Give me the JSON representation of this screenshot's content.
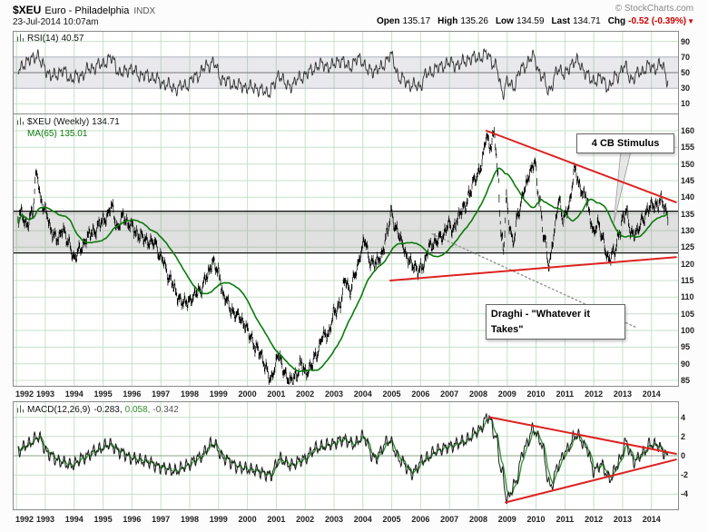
{
  "header": {
    "symbol": "$XEU",
    "title": "Euro - Philadelphia",
    "exchange": "INDX",
    "copyright": "© StockCharts.com",
    "datetime": "23-Jul-2014 10:07am",
    "quote": {
      "open_label": "Open",
      "open": "135.17",
      "high_label": "High",
      "high": "135.26",
      "low_label": "Low",
      "low": "134.59",
      "last_label": "Last",
      "last": "134.71",
      "chg_label": "Chg",
      "chg": "-0.52 (-0.39%)",
      "chg_dir": "▼"
    }
  },
  "colors": {
    "grid": "#c8dfc8",
    "panel_border": "#8a8a8a",
    "price": "#000000",
    "ma": "#0b7a0b",
    "rsi_line": "#333333",
    "rsi_band": "rgba(135,135,155,0.18)",
    "macd_line": "#1c1c1c",
    "signal_line": "#2f8f2f",
    "trendline": "#dd2222",
    "band_fill": "rgba(130,130,130,0.25)",
    "chg_negative": "#cc0000",
    "dotted_line": "#999999"
  },
  "icons": {
    "indicator_icon": "mini-bars",
    "chg_down_icon": "down-triangle"
  },
  "x_axis": {
    "ticks": [
      "1992",
      "1993",
      "1994",
      "1995",
      "1996",
      "1997",
      "1998",
      "1999",
      "2000",
      "2001",
      "2002",
      "2003",
      "2004",
      "2005",
      "2006",
      "2007",
      "2008",
      "2009",
      "2010",
      "2011",
      "2012",
      "2013",
      "2014"
    ]
  },
  "chart_data": [
    {
      "type": "line",
      "name": "rsi",
      "label": "RSI(14)",
      "value": "40.57",
      "ylim": [
        0,
        100
      ],
      "yticks": [
        "90",
        "70",
        "50",
        "30",
        "10"
      ],
      "band": [
        30,
        70
      ],
      "midline": 50,
      "xlim": [
        1992,
        2014.6
      ],
      "points": [
        [
          1992.0,
          52
        ],
        [
          1992.3,
          62
        ],
        [
          1992.7,
          72
        ],
        [
          1992.9,
          60
        ],
        [
          1993.2,
          45
        ],
        [
          1993.6,
          52
        ],
        [
          1993.9,
          42
        ],
        [
          1994.2,
          46
        ],
        [
          1994.6,
          56
        ],
        [
          1994.9,
          60
        ],
        [
          1995.3,
          68
        ],
        [
          1995.6,
          48
        ],
        [
          1995.9,
          55
        ],
        [
          1996.3,
          47
        ],
        [
          1996.7,
          44
        ],
        [
          1997.1,
          36
        ],
        [
          1997.5,
          30
        ],
        [
          1997.9,
          34
        ],
        [
          1998.2,
          45
        ],
        [
          1998.6,
          58
        ],
        [
          1998.8,
          64
        ],
        [
          1999.1,
          42
        ],
        [
          1999.5,
          35
        ],
        [
          1999.9,
          32
        ],
        [
          2000.3,
          30
        ],
        [
          2000.7,
          24
        ],
        [
          2000.95,
          35
        ],
        [
          2001.1,
          48
        ],
        [
          2001.4,
          32
        ],
        [
          2001.8,
          42
        ],
        [
          2002.1,
          50
        ],
        [
          2002.5,
          60
        ],
        [
          2002.9,
          58
        ],
        [
          2003.2,
          66
        ],
        [
          2003.5,
          58
        ],
        [
          2003.9,
          68
        ],
        [
          2004.2,
          52
        ],
        [
          2004.6,
          55
        ],
        [
          2004.95,
          72
        ],
        [
          2005.3,
          42
        ],
        [
          2005.7,
          34
        ],
        [
          2005.95,
          32
        ],
        [
          2006.2,
          48
        ],
        [
          2006.6,
          56
        ],
        [
          2006.95,
          62
        ],
        [
          2007.3,
          60
        ],
        [
          2007.7,
          68
        ],
        [
          2008.1,
          70
        ],
        [
          2008.3,
          74
        ],
        [
          2008.6,
          58
        ],
        [
          2008.85,
          25
        ],
        [
          2009.0,
          38
        ],
        [
          2009.2,
          32
        ],
        [
          2009.5,
          55
        ],
        [
          2009.9,
          70
        ],
        [
          2010.2,
          45
        ],
        [
          2010.45,
          28
        ],
        [
          2010.8,
          55
        ],
        [
          2011.0,
          48
        ],
        [
          2011.35,
          66
        ],
        [
          2011.7,
          52
        ],
        [
          2011.95,
          38
        ],
        [
          2012.2,
          44
        ],
        [
          2012.5,
          32
        ],
        [
          2012.8,
          45
        ],
        [
          2013.05,
          58
        ],
        [
          2013.3,
          42
        ],
        [
          2013.6,
          50
        ],
        [
          2013.9,
          58
        ],
        [
          2014.1,
          56
        ],
        [
          2014.35,
          60
        ],
        [
          2014.58,
          40.6
        ]
      ]
    },
    {
      "type": "ohlc",
      "name": "price",
      "label": "$XEU (Weekly)",
      "value": "134.71",
      "ma_label": "MA(65)",
      "ma_value": "135.01",
      "ylim": [
        85,
        160
      ],
      "yticks": [
        "160",
        "155",
        "150",
        "145",
        "140",
        "135",
        "130",
        "125",
        "120",
        "115",
        "110",
        "105",
        "100",
        "95",
        "90",
        "85"
      ],
      "xlim": [
        1992,
        2014.6
      ],
      "support_band": [
        123.3,
        135.8
      ],
      "trendlines": [
        {
          "from": [
            2008.28,
            160
          ],
          "to": [
            2014.85,
            138.5
          ]
        },
        {
          "from": [
            2004.95,
            115
          ],
          "to": [
            2014.85,
            122
          ]
        }
      ],
      "dotted_line": {
        "from": [
          2006.4,
          129
        ],
        "to": [
          2013.45,
          101
        ]
      },
      "callout": {
        "tip": [
          2012.69,
          132.2
        ],
        "base": [
          [
            2012.94,
            154
          ],
          [
            2013.29,
            154
          ]
        ]
      },
      "annotations": [
        {
          "id": "cb-stimulus",
          "text": "4 CB Stimulus",
          "pos": [
            2011.4,
            159.2
          ],
          "w": 96,
          "center": true
        },
        {
          "id": "draghi",
          "text": "Draghi - \"Whatever it Takes\"",
          "pos": [
            2008.25,
            107.9
          ],
          "w": 142,
          "center": false
        }
      ],
      "points": [
        [
          1992.0,
          132
        ],
        [
          1992.15,
          136
        ],
        [
          1992.35,
          131
        ],
        [
          1992.55,
          136
        ],
        [
          1992.7,
          147
        ],
        [
          1992.85,
          139
        ],
        [
          1993.0,
          136
        ],
        [
          1993.2,
          130
        ],
        [
          1993.45,
          127
        ],
        [
          1993.6,
          131
        ],
        [
          1993.8,
          126
        ],
        [
          1994.0,
          122
        ],
        [
          1994.2,
          124
        ],
        [
          1994.45,
          128
        ],
        [
          1994.7,
          130
        ],
        [
          1994.9,
          132
        ],
        [
          1995.1,
          134
        ],
        [
          1995.3,
          137
        ],
        [
          1995.5,
          131
        ],
        [
          1995.7,
          134
        ],
        [
          1995.9,
          132
        ],
        [
          1996.2,
          129
        ],
        [
          1996.5,
          127
        ],
        [
          1996.8,
          126
        ],
        [
          1997.0,
          122
        ],
        [
          1997.3,
          116
        ],
        [
          1997.6,
          110
        ],
        [
          1997.85,
          108
        ],
        [
          1998.1,
          110
        ],
        [
          1998.35,
          112
        ],
        [
          1998.6,
          116
        ],
        [
          1998.8,
          121
        ],
        [
          1999.0,
          117
        ],
        [
          1999.2,
          110
        ],
        [
          1999.45,
          106
        ],
        [
          1999.7,
          104
        ],
        [
          1999.9,
          102
        ],
        [
          2000.1,
          98
        ],
        [
          2000.3,
          95
        ],
        [
          2000.5,
          92
        ],
        [
          2000.65,
          89
        ],
        [
          2000.8,
          84.5
        ],
        [
          2000.95,
          89
        ],
        [
          2001.05,
          93
        ],
        [
          2001.25,
          88
        ],
        [
          2001.5,
          84.5
        ],
        [
          2001.7,
          87
        ],
        [
          2001.85,
          90
        ],
        [
          2002.0,
          87.5
        ],
        [
          2002.2,
          89
        ],
        [
          2002.4,
          93
        ],
        [
          2002.6,
          98
        ],
        [
          2002.8,
          99
        ],
        [
          2003.0,
          105
        ],
        [
          2003.2,
          108
        ],
        [
          2003.4,
          115
        ],
        [
          2003.55,
          112
        ],
        [
          2003.75,
          117
        ],
        [
          2003.95,
          124
        ],
        [
          2004.05,
          127
        ],
        [
          2004.25,
          121
        ],
        [
          2004.45,
          120
        ],
        [
          2004.65,
          123
        ],
        [
          2004.85,
          129
        ],
        [
          2004.98,
          136
        ],
        [
          2005.15,
          130
        ],
        [
          2005.35,
          127
        ],
        [
          2005.55,
          121
        ],
        [
          2005.75,
          120
        ],
        [
          2005.92,
          117.5
        ],
        [
          2006.1,
          120
        ],
        [
          2006.3,
          125
        ],
        [
          2006.55,
          127
        ],
        [
          2006.75,
          128
        ],
        [
          2006.95,
          132
        ],
        [
          2007.1,
          130
        ],
        [
          2007.3,
          134
        ],
        [
          2007.5,
          137
        ],
        [
          2007.7,
          141
        ],
        [
          2007.9,
          146
        ],
        [
          2008.1,
          149
        ],
        [
          2008.28,
          158.5
        ],
        [
          2008.45,
          155
        ],
        [
          2008.55,
          159.5
        ],
        [
          2008.68,
          147
        ],
        [
          2008.8,
          128
        ],
        [
          2008.88,
          124
        ],
        [
          2008.97,
          140
        ],
        [
          2009.08,
          132
        ],
        [
          2009.2,
          126
        ],
        [
          2009.4,
          136
        ],
        [
          2009.6,
          142
        ],
        [
          2009.8,
          148
        ],
        [
          2009.95,
          150.5
        ],
        [
          2010.1,
          140
        ],
        [
          2010.3,
          127
        ],
        [
          2010.45,
          119.5
        ],
        [
          2010.6,
          128
        ],
        [
          2010.8,
          139
        ],
        [
          2010.95,
          133.5
        ],
        [
          2011.1,
          136
        ],
        [
          2011.35,
          148.5
        ],
        [
          2011.5,
          143
        ],
        [
          2011.7,
          141
        ],
        [
          2011.9,
          133
        ],
        [
          2012.0,
          129.5
        ],
        [
          2012.12,
          132
        ],
        [
          2012.3,
          128
        ],
        [
          2012.52,
          120.8
        ],
        [
          2012.7,
          124
        ],
        [
          2012.9,
          129
        ],
        [
          2013.02,
          134
        ],
        [
          2013.12,
          136.5
        ],
        [
          2013.3,
          128.5
        ],
        [
          2013.5,
          130
        ],
        [
          2013.7,
          133
        ],
        [
          2013.9,
          137
        ],
        [
          2014.1,
          137.5
        ],
        [
          2014.33,
          139
        ],
        [
          2014.5,
          136
        ],
        [
          2014.58,
          134.7
        ]
      ]
    },
    {
      "type": "line",
      "name": "macd",
      "label": "MACD(12,26,9)",
      "values_display": [
        "-0.283,",
        "0.058,",
        "-0.342"
      ],
      "ylim": [
        -5,
        5
      ],
      "yticks": [
        "4",
        "2",
        "0",
        "-2",
        "-4"
      ],
      "xlim": [
        1992,
        2014.6
      ],
      "trendlines": [
        {
          "from": [
            2008.4,
            4.0
          ],
          "to": [
            2014.85,
            0.2
          ]
        },
        {
          "from": [
            2008.95,
            -4.85
          ],
          "to": [
            2014.85,
            -0.4
          ]
        }
      ],
      "points": [
        [
          1992.0,
          0.4
        ],
        [
          1992.4,
          1.2
        ],
        [
          1992.75,
          2.0
        ],
        [
          1993.1,
          0.2
        ],
        [
          1993.5,
          -0.6
        ],
        [
          1993.9,
          -1.0
        ],
        [
          1994.3,
          -0.2
        ],
        [
          1994.8,
          0.6
        ],
        [
          1995.2,
          1.2
        ],
        [
          1995.6,
          0.4
        ],
        [
          1996.0,
          -0.3
        ],
        [
          1996.5,
          -0.6
        ],
        [
          1997.0,
          -1.2
        ],
        [
          1997.5,
          -1.6
        ],
        [
          1997.9,
          -1.0
        ],
        [
          1998.3,
          -0.2
        ],
        [
          1998.8,
          1.3
        ],
        [
          1999.2,
          -0.3
        ],
        [
          1999.7,
          -1.2
        ],
        [
          2000.2,
          -1.5
        ],
        [
          2000.8,
          -2.0
        ],
        [
          2001.1,
          -0.3
        ],
        [
          2001.5,
          -1.0
        ],
        [
          2001.9,
          -0.4
        ],
        [
          2002.4,
          0.8
        ],
        [
          2002.9,
          1.2
        ],
        [
          2003.3,
          1.7
        ],
        [
          2003.7,
          1.2
        ],
        [
          2004.0,
          2.0
        ],
        [
          2004.4,
          -0.3
        ],
        [
          2004.9,
          1.6
        ],
        [
          2005.3,
          -0.5
        ],
        [
          2005.7,
          -1.8
        ],
        [
          2006.1,
          -0.4
        ],
        [
          2006.6,
          0.6
        ],
        [
          2007.0,
          1.0
        ],
        [
          2007.5,
          1.5
        ],
        [
          2008.0,
          2.6
        ],
        [
          2008.35,
          4.1
        ],
        [
          2008.6,
          2.0
        ],
        [
          2008.8,
          -1.5
        ],
        [
          2009.0,
          -4.6
        ],
        [
          2009.25,
          -3.0
        ],
        [
          2009.6,
          0.8
        ],
        [
          2009.9,
          2.8
        ],
        [
          2010.15,
          1.5
        ],
        [
          2010.5,
          -3.2
        ],
        [
          2010.8,
          -0.8
        ],
        [
          2011.0,
          0.4
        ],
        [
          2011.4,
          2.2
        ],
        [
          2011.75,
          0.8
        ],
        [
          2012.0,
          -1.6
        ],
        [
          2012.25,
          -0.9
        ],
        [
          2012.55,
          -2.4
        ],
        [
          2012.9,
          -0.5
        ],
        [
          2013.1,
          1.4
        ],
        [
          2013.4,
          -0.6
        ],
        [
          2013.7,
          0.3
        ],
        [
          2013.95,
          1.2
        ],
        [
          2014.2,
          1.1
        ],
        [
          2014.45,
          0.3
        ],
        [
          2014.58,
          -0.28
        ]
      ]
    }
  ]
}
